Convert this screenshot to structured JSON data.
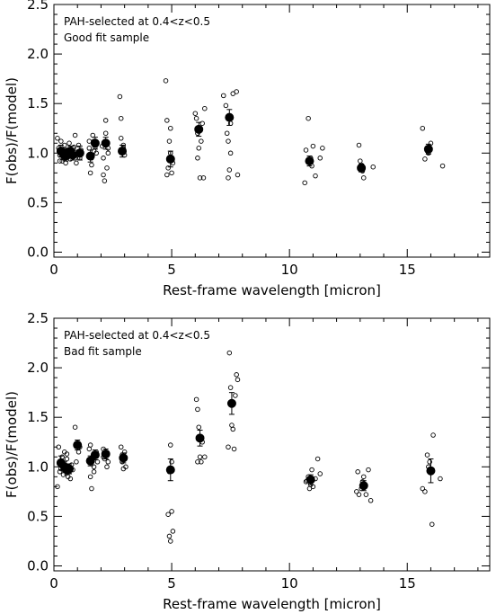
{
  "chart_data": [
    {
      "type": "scatter",
      "annotations": [
        "PAH-selected at 0.4<z<0.5",
        "Good fit sample"
      ],
      "xlabel": "Rest-frame wavelength [micron]",
      "ylabel": "F(obs)/F(model)",
      "xlim": [
        0,
        18.5
      ],
      "ylim": [
        -0.05,
        2.5
      ],
      "xticks": [
        0,
        5,
        10,
        15
      ],
      "yticks": [
        0.0,
        0.5,
        1.0,
        1.5,
        2.0,
        2.5
      ],
      "xtick_labels": [
        "0",
        "5",
        "10",
        "15"
      ],
      "ytick_labels": [
        "0.0",
        "0.5",
        "1.0",
        "1.5",
        "2.0",
        "2.5"
      ],
      "grid": false,
      "points": [
        [
          0.15,
          1.15
        ],
        [
          0.2,
          1.05
        ],
        [
          0.25,
          0.98
        ],
        [
          0.3,
          1.12
        ],
        [
          0.35,
          0.92
        ],
        [
          0.4,
          0.95
        ],
        [
          0.45,
          1.08
        ],
        [
          0.5,
          0.9
        ],
        [
          0.55,
          1.02
        ],
        [
          0.6,
          0.96
        ],
        [
          0.65,
          1.1
        ],
        [
          0.7,
          0.94
        ],
        [
          0.75,
          1.0
        ],
        [
          0.8,
          1.05
        ],
        [
          0.85,
          0.97
        ],
        [
          0.9,
          0.95
        ],
        [
          0.95,
          1.01
        ],
        [
          0.25,
          0.92
        ],
        [
          0.45,
          1.03
        ],
        [
          0.65,
          0.98
        ],
        [
          0.85,
          1.06
        ],
        [
          0.9,
          1.18
        ],
        [
          1.05,
          1.08
        ],
        [
          1.1,
          0.95
        ],
        [
          1.15,
          1.03
        ],
        [
          0.95,
          0.9
        ],
        [
          1.5,
          1.12
        ],
        [
          1.55,
          0.8
        ],
        [
          1.6,
          0.95
        ],
        [
          1.6,
          0.88
        ],
        [
          1.65,
          1.18
        ],
        [
          1.7,
          1.02
        ],
        [
          1.75,
          1.06
        ],
        [
          1.8,
          1.0
        ],
        [
          1.5,
          1.05
        ],
        [
          1.7,
          1.12
        ],
        [
          2.05,
          1.07
        ],
        [
          2.1,
          0.95
        ],
        [
          2.15,
          0.72
        ],
        [
          2.2,
          1.33
        ],
        [
          2.25,
          0.85
        ],
        [
          2.3,
          1.0
        ],
        [
          2.1,
          0.78
        ],
        [
          2.2,
          1.2
        ],
        [
          2.3,
          1.05
        ],
        [
          2.8,
          1.57
        ],
        [
          2.85,
          1.35
        ],
        [
          2.9,
          1.02
        ],
        [
          2.95,
          1.05
        ],
        [
          3.0,
          0.98
        ],
        [
          2.85,
          1.15
        ],
        [
          2.95,
          1.08
        ],
        [
          4.75,
          1.73
        ],
        [
          4.8,
          1.33
        ],
        [
          4.85,
          0.85
        ],
        [
          4.9,
          0.95
        ],
        [
          4.95,
          1.0
        ],
        [
          5.0,
          0.8
        ],
        [
          4.8,
          0.78
        ],
        [
          5.05,
          0.9
        ],
        [
          4.9,
          1.12
        ],
        [
          4.95,
          1.25
        ],
        [
          6.0,
          1.4
        ],
        [
          6.05,
          1.35
        ],
        [
          6.1,
          1.2
        ],
        [
          6.15,
          1.05
        ],
        [
          6.2,
          0.75
        ],
        [
          6.25,
          1.12
        ],
        [
          6.3,
          1.3
        ],
        [
          6.1,
          0.95
        ],
        [
          6.4,
          1.45
        ],
        [
          6.35,
          0.75
        ],
        [
          7.2,
          1.58
        ],
        [
          7.3,
          1.48
        ],
        [
          7.35,
          1.2
        ],
        [
          7.4,
          1.12
        ],
        [
          7.45,
          0.83
        ],
        [
          7.5,
          1.0
        ],
        [
          7.6,
          1.6
        ],
        [
          7.75,
          1.62
        ],
        [
          7.8,
          0.78
        ],
        [
          7.4,
          0.75
        ],
        [
          7.5,
          1.3
        ],
        [
          10.65,
          0.7
        ],
        [
          10.7,
          1.03
        ],
        [
          10.8,
          1.35
        ],
        [
          10.85,
          0.9
        ],
        [
          10.95,
          0.87
        ],
        [
          11.0,
          1.07
        ],
        [
          11.1,
          0.77
        ],
        [
          11.3,
          0.95
        ],
        [
          11.4,
          1.05
        ],
        [
          10.9,
          0.95
        ],
        [
          12.95,
          1.08
        ],
        [
          13.0,
          0.92
        ],
        [
          13.05,
          0.88
        ],
        [
          13.15,
          0.75
        ],
        [
          13.55,
          0.86
        ],
        [
          13.1,
          0.82
        ],
        [
          15.65,
          1.25
        ],
        [
          15.75,
          0.94
        ],
        [
          15.85,
          1.02
        ],
        [
          16.0,
          1.1
        ],
        [
          16.5,
          0.87
        ],
        [
          15.9,
          1.0
        ]
      ],
      "means": [
        {
          "x": 0.3,
          "y": 1.02,
          "err": 0.06
        },
        {
          "x": 0.4,
          "y": 0.99,
          "err": 0.05
        },
        {
          "x": 0.5,
          "y": 0.97,
          "err": 0.05
        },
        {
          "x": 0.6,
          "y": 1.0,
          "err": 0.05
        },
        {
          "x": 0.7,
          "y": 1.02,
          "err": 0.05
        },
        {
          "x": 0.8,
          "y": 0.98,
          "err": 0.05
        },
        {
          "x": 1.1,
          "y": 1.0,
          "err": 0.07
        },
        {
          "x": 1.55,
          "y": 0.97,
          "err": 0.06
        },
        {
          "x": 1.75,
          "y": 1.1,
          "err": 0.06
        },
        {
          "x": 2.2,
          "y": 1.1,
          "err": 0.06
        },
        {
          "x": 2.9,
          "y": 1.02,
          "err": 0.06
        },
        {
          "x": 4.95,
          "y": 0.94,
          "err": 0.08
        },
        {
          "x": 6.15,
          "y": 1.24,
          "err": 0.07
        },
        {
          "x": 7.45,
          "y": 1.36,
          "err": 0.08
        },
        {
          "x": 10.85,
          "y": 0.92,
          "err": 0.05
        },
        {
          "x": 13.05,
          "y": 0.85,
          "err": 0.04
        },
        {
          "x": 15.9,
          "y": 1.04,
          "err": 0.05
        }
      ]
    },
    {
      "type": "scatter",
      "annotations": [
        "PAH-selected at 0.4<z<0.5",
        "Bad fit sample"
      ],
      "xlabel": "Rest-frame wavelength [micron]",
      "ylabel": "F(obs)/F(model)",
      "xlim": [
        0,
        18.5
      ],
      "ylim": [
        -0.05,
        2.5
      ],
      "xticks": [
        0,
        5,
        10,
        15
      ],
      "yticks": [
        0.0,
        0.5,
        1.0,
        1.5,
        2.0,
        2.5
      ],
      "xtick_labels": [
        "0",
        "5",
        "10",
        "15"
      ],
      "ytick_labels": [
        "0.0",
        "0.5",
        "1.0",
        "1.5",
        "2.0",
        "2.5"
      ],
      "grid": false,
      "points": [
        [
          0.15,
          0.8
        ],
        [
          0.2,
          1.2
        ],
        [
          0.25,
          0.95
        ],
        [
          0.3,
          1.05
        ],
        [
          0.35,
          1.1
        ],
        [
          0.4,
          0.92
        ],
        [
          0.45,
          1.15
        ],
        [
          0.5,
          1.0
        ],
        [
          0.55,
          1.08
        ],
        [
          0.6,
          0.9
        ],
        [
          0.65,
          0.95
        ],
        [
          0.7,
          0.88
        ],
        [
          0.75,
          1.02
        ],
        [
          0.8,
          0.97
        ],
        [
          0.3,
          0.98
        ],
        [
          0.55,
          1.13
        ],
        [
          0.9,
          1.4
        ],
        [
          1.0,
          1.22
        ],
        [
          1.05,
          1.15
        ],
        [
          1.1,
          1.2
        ],
        [
          0.95,
          1.05
        ],
        [
          1.5,
          1.18
        ],
        [
          1.55,
          0.9
        ],
        [
          1.6,
          0.78
        ],
        [
          1.65,
          1.1
        ],
        [
          1.7,
          1.0
        ],
        [
          1.75,
          1.12
        ],
        [
          1.8,
          1.15
        ],
        [
          1.85,
          1.05
        ],
        [
          1.55,
          1.22
        ],
        [
          1.7,
          0.95
        ],
        [
          2.1,
          1.18
        ],
        [
          2.15,
          1.08
        ],
        [
          2.2,
          1.15
        ],
        [
          2.25,
          1.0
        ],
        [
          2.3,
          1.05
        ],
        [
          2.1,
          1.1
        ],
        [
          2.85,
          1.2
        ],
        [
          2.9,
          1.05
        ],
        [
          2.95,
          0.98
        ],
        [
          3.0,
          1.15
        ],
        [
          3.05,
          1.0
        ],
        [
          2.9,
          1.12
        ],
        [
          4.85,
          0.52
        ],
        [
          4.9,
          0.3
        ],
        [
          4.95,
          0.25
        ],
        [
          5.0,
          0.55
        ],
        [
          5.05,
          0.35
        ],
        [
          4.95,
          1.22
        ],
        [
          5.0,
          1.05
        ],
        [
          4.9,
          0.95
        ],
        [
          6.05,
          1.68
        ],
        [
          6.1,
          1.58
        ],
        [
          6.15,
          1.4
        ],
        [
          6.2,
          1.1
        ],
        [
          6.25,
          1.05
        ],
        [
          6.3,
          1.25
        ],
        [
          6.4,
          1.1
        ],
        [
          6.1,
          1.05
        ],
        [
          7.45,
          2.15
        ],
        [
          7.5,
          1.8
        ],
        [
          7.55,
          1.42
        ],
        [
          7.6,
          1.38
        ],
        [
          7.65,
          1.18
        ],
        [
          7.4,
          1.2
        ],
        [
          7.75,
          1.93
        ],
        [
          7.8,
          1.88
        ],
        [
          7.7,
          1.72
        ],
        [
          10.7,
          0.85
        ],
        [
          10.8,
          0.9
        ],
        [
          10.85,
          0.78
        ],
        [
          10.9,
          0.82
        ],
        [
          10.95,
          0.97
        ],
        [
          11.0,
          0.8
        ],
        [
          11.1,
          0.88
        ],
        [
          11.2,
          1.08
        ],
        [
          11.3,
          0.93
        ],
        [
          10.75,
          0.86
        ],
        [
          12.85,
          0.75
        ],
        [
          12.95,
          0.72
        ],
        [
          13.05,
          0.78
        ],
        [
          13.15,
          0.9
        ],
        [
          13.25,
          0.72
        ],
        [
          13.35,
          0.97
        ],
        [
          13.45,
          0.66
        ],
        [
          12.9,
          0.95
        ],
        [
          13.1,
          0.85
        ],
        [
          15.65,
          0.78
        ],
        [
          15.75,
          0.75
        ],
        [
          15.85,
          1.12
        ],
        [
          15.95,
          1.05
        ],
        [
          16.05,
          0.42
        ],
        [
          16.1,
          1.32
        ],
        [
          16.4,
          0.88
        ],
        [
          15.9,
          1.0
        ]
      ],
      "means": [
        {
          "x": 0.3,
          "y": 1.04,
          "err": 0.07
        },
        {
          "x": 0.45,
          "y": 1.0,
          "err": 0.05
        },
        {
          "x": 0.55,
          "y": 0.97,
          "err": 0.05
        },
        {
          "x": 0.65,
          "y": 0.98,
          "err": 0.05
        },
        {
          "x": 1.0,
          "y": 1.22,
          "err": 0.05
        },
        {
          "x": 1.55,
          "y": 1.06,
          "err": 0.05
        },
        {
          "x": 1.75,
          "y": 1.12,
          "err": 0.05
        },
        {
          "x": 2.2,
          "y": 1.13,
          "err": 0.05
        },
        {
          "x": 2.95,
          "y": 1.09,
          "err": 0.05
        },
        {
          "x": 4.95,
          "y": 0.97,
          "err": 0.11
        },
        {
          "x": 6.2,
          "y": 1.29,
          "err": 0.08
        },
        {
          "x": 7.55,
          "y": 1.64,
          "err": 0.11
        },
        {
          "x": 10.9,
          "y": 0.87,
          "err": 0.05
        },
        {
          "x": 13.15,
          "y": 0.81,
          "err": 0.05
        },
        {
          "x": 16.0,
          "y": 0.96,
          "err": 0.12
        }
      ]
    }
  ]
}
